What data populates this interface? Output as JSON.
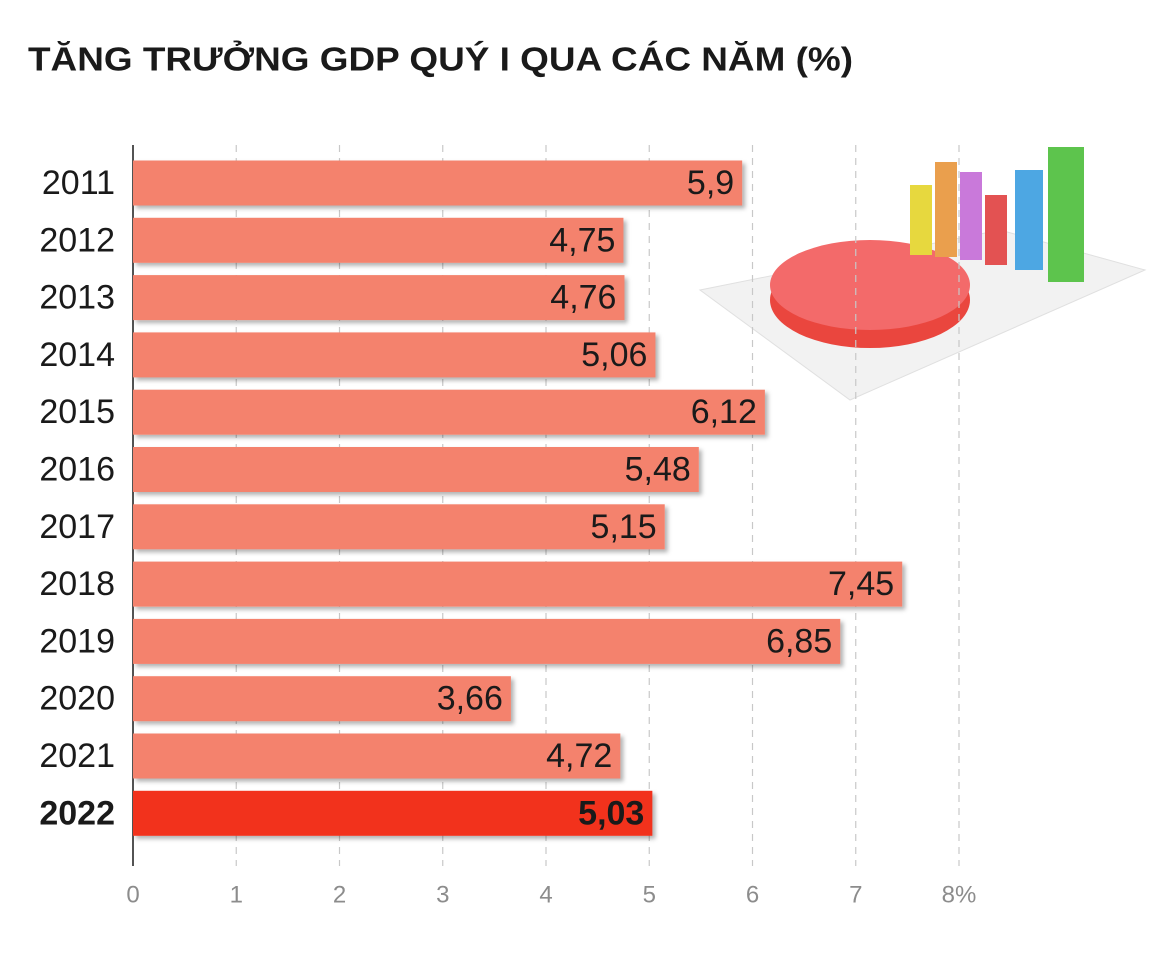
{
  "chart_data": {
    "type": "hbar",
    "title": "TĂNG TRƯỞNG GDP QUÝ I QUA CÁC NĂM (%)",
    "categories": [
      "2011",
      "2012",
      "2013",
      "2014",
      "2015",
      "2016",
      "2017",
      "2018",
      "2019",
      "2020",
      "2021",
      "2022"
    ],
    "values": [
      5.9,
      4.75,
      4.76,
      5.06,
      6.12,
      5.48,
      5.15,
      7.45,
      6.85,
      3.66,
      4.72,
      5.03
    ],
    "value_labels": [
      "5,9",
      "4,75",
      "4,76",
      "5,06",
      "6,12",
      "5,48",
      "5,15",
      "7,45",
      "6,85",
      "3,66",
      "4,72",
      "5,03"
    ],
    "color": "#f4826d",
    "highlight": {
      "category": "2022",
      "color": "#f2311b",
      "label_color": "#8b1a1a"
    },
    "xlim": [
      0,
      8
    ],
    "xticks": [
      0,
      1,
      2,
      3,
      4,
      5,
      6,
      7,
      {
        "value": 8,
        "label": "8%"
      }
    ],
    "grid": true
  }
}
